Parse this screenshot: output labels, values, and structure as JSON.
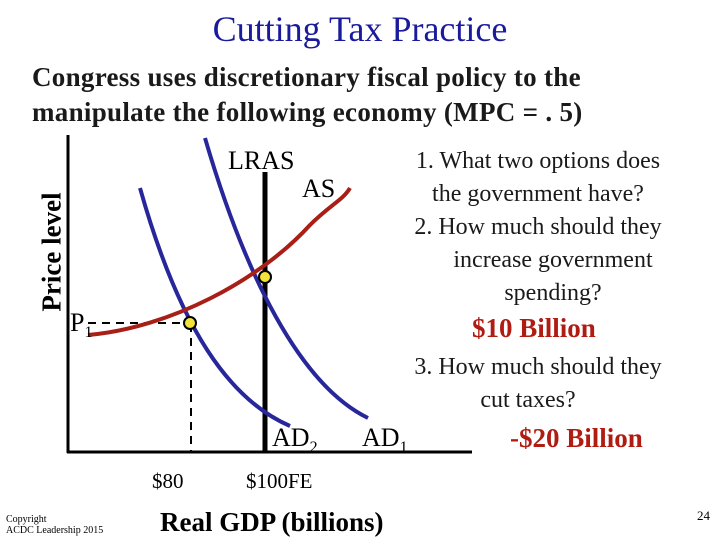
{
  "slide": {
    "title": "Cutting Tax Practice",
    "subtitle_line1": "Congress uses discretionary fiscal policy to the",
    "subtitle_line2": "manipulate the following economy (MPC = . 5)",
    "page_number": "24"
  },
  "diagram": {
    "y_axis_label": "Price level",
    "x_axis_label": "Real GDP (billions)",
    "curves": {
      "lras_label": "LRAS",
      "as_label": "AS",
      "ad1_label": "AD",
      "ad1_sub": "1",
      "ad2_label": "AD",
      "ad2_sub": "2"
    },
    "price_label": "P",
    "price_sub": "1",
    "x_tick_1": "$80",
    "x_tick_2": "$100FE",
    "colors": {
      "as_curve": "#a81f17",
      "ad_curve": "#27279b",
      "point": "#f2e23a"
    }
  },
  "questions": {
    "q1_line1": "1. What two options does",
    "q1_line2": "the government have?",
    "q2_line1": "2. How much should they",
    "q2_line2": "increase government",
    "q2_line3": "spending?",
    "a2": "$10 Billion",
    "q3_line1": "3. How much should they",
    "q3_line2": "cut taxes?",
    "a3": "-$20 Billion"
  },
  "footer": {
    "copyright_line1": "Copyright",
    "copyright_line2": "ACDC Leadership 2015"
  }
}
